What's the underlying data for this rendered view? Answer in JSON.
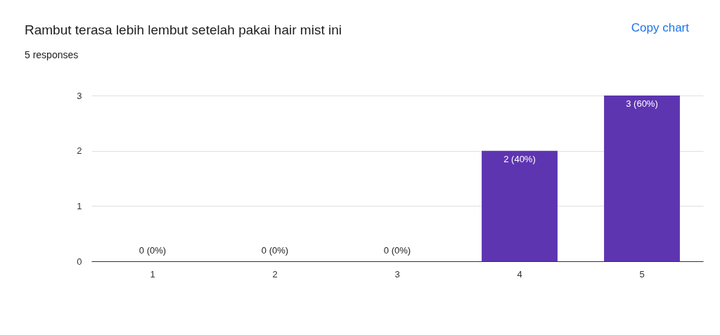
{
  "chart_data": {
    "type": "bar",
    "title": "Rambut terasa lebih lembut setelah pakai hair mist ini",
    "subtitle": "5 responses",
    "categories": [
      "1",
      "2",
      "3",
      "4",
      "5"
    ],
    "values": [
      0,
      0,
      0,
      2,
      3
    ],
    "color": "#5e35b1",
    "value_labels": [
      "0 (0%)",
      "0 (0%)",
      "0 (0%)",
      "2 (40%)",
      "3 (60%)"
    ],
    "ylim": [
      0,
      3
    ],
    "yticks": [
      0,
      1,
      2,
      3
    ],
    "grid": "y",
    "annotations": [
      "Copy chart"
    ]
  }
}
